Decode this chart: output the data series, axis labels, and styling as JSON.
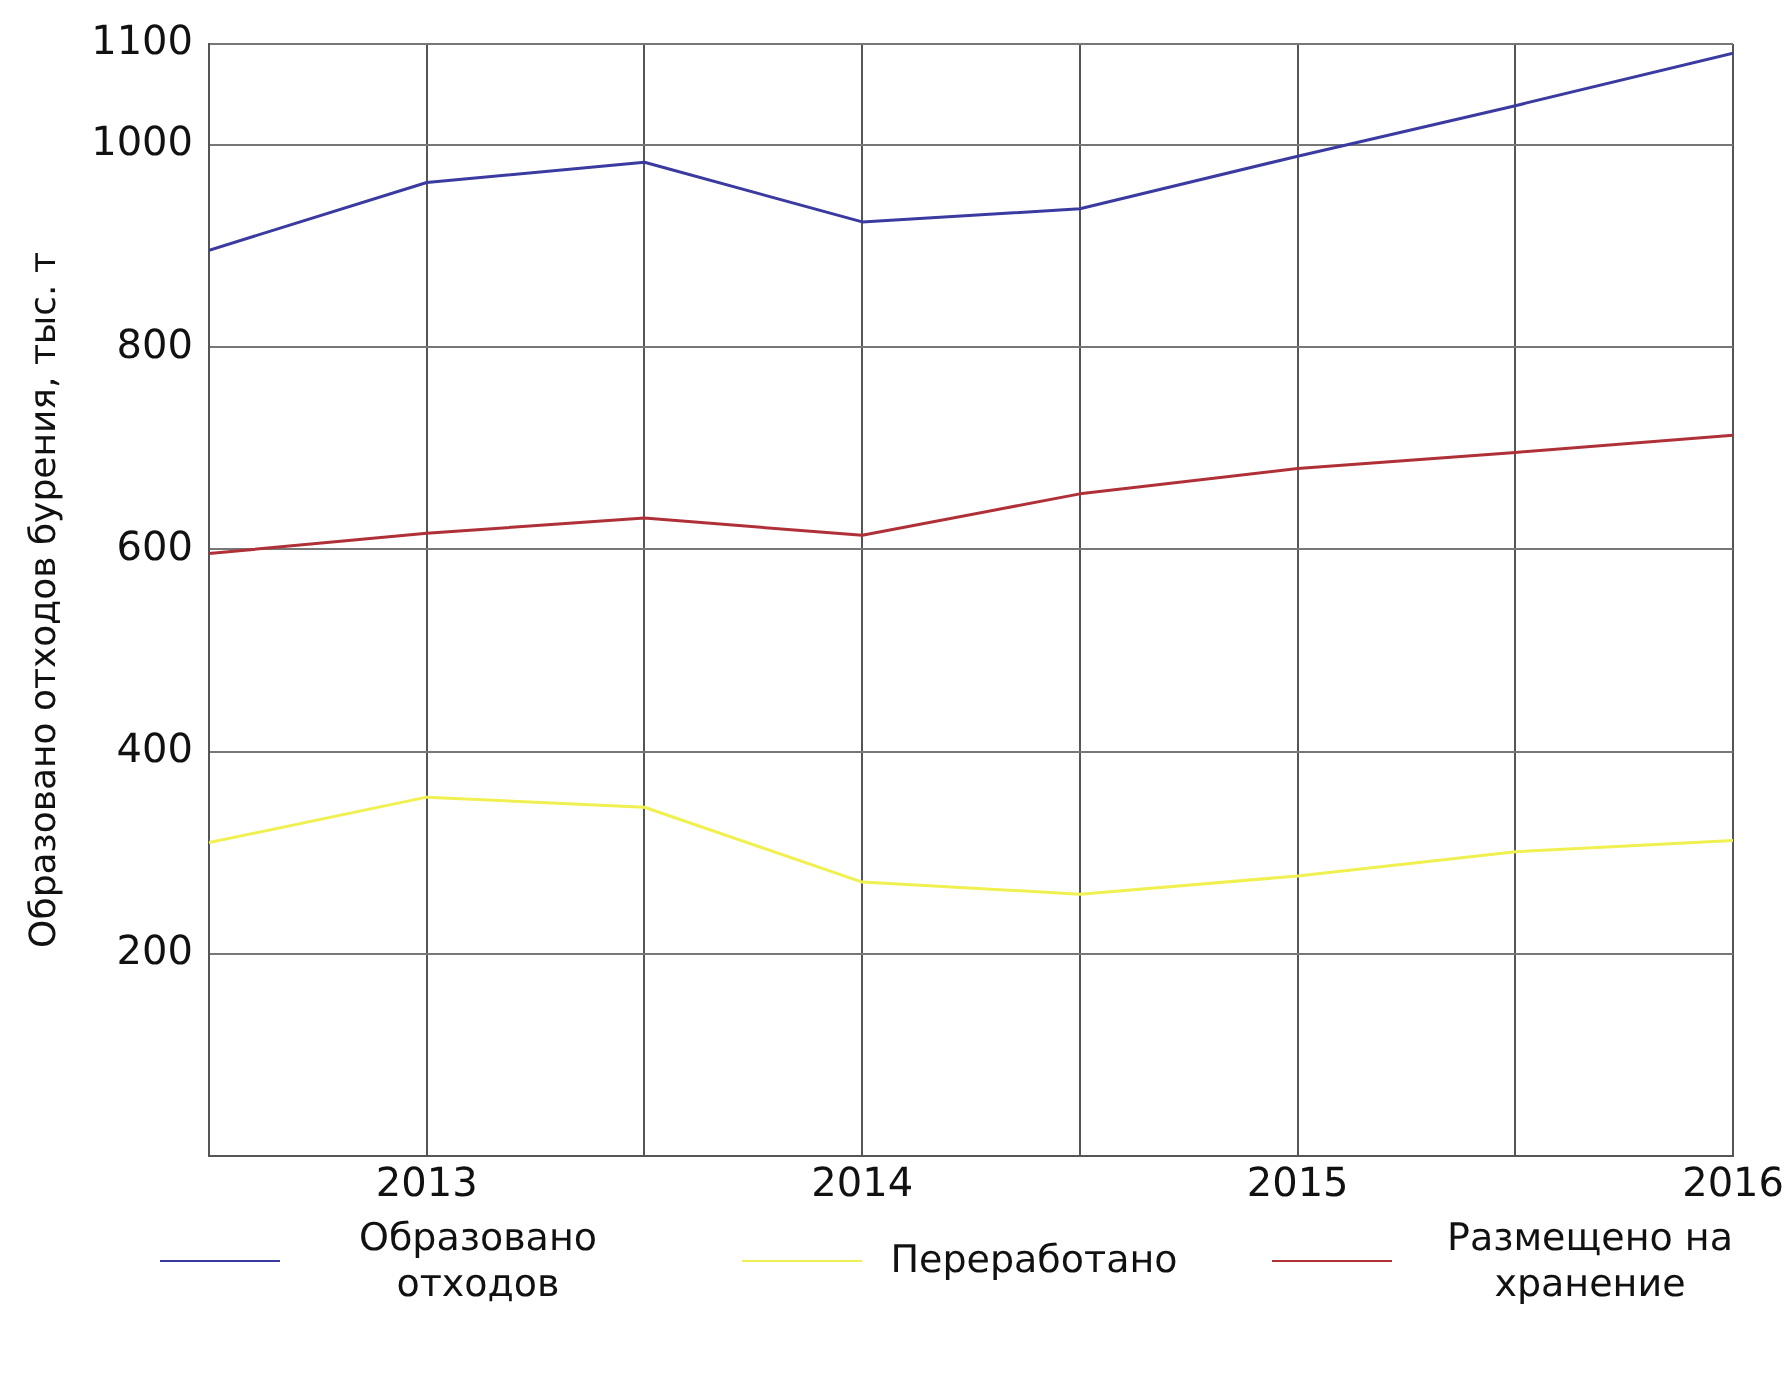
{
  "chart_data": {
    "type": "line",
    "ylabel": "Образовано отходов бурения, тыс. т",
    "x": [
      2012.5,
      2013,
      2013.5,
      2014,
      2014.5,
      2015,
      2015.5,
      2016
    ],
    "series": [
      {
        "name": "Образовано отходов",
        "color": "#3a3aa0",
        "values": [
          896,
          963,
          983,
          924,
          937,
          989,
          1039,
          1091
        ]
      },
      {
        "name": "Переработано",
        "color": "#f0f050",
        "values": [
          310,
          355,
          345,
          271,
          259,
          277,
          301,
          312
        ]
      },
      {
        "name": "Размещено на хранение",
        "color": "#b03038",
        "values": [
          596,
          616,
          631,
          614,
          655,
          680,
          696,
          713
        ]
      }
    ],
    "xlim": [
      2012.5,
      2016
    ],
    "xticks": [
      2013,
      {
        "value": 2013.5,
        "label": null
      },
      2014,
      {
        "value": 2014.5,
        "label": null
      },
      2015,
      {
        "value": 2015.5,
        "label": null
      },
      2016
    ],
    "ylim": [
      0,
      1100
    ],
    "yticks": [
      200,
      400,
      600,
      800,
      1000,
      1100
    ],
    "grid": true,
    "legend": "bottom",
    "marker": "none",
    "line_style": "solid"
  }
}
